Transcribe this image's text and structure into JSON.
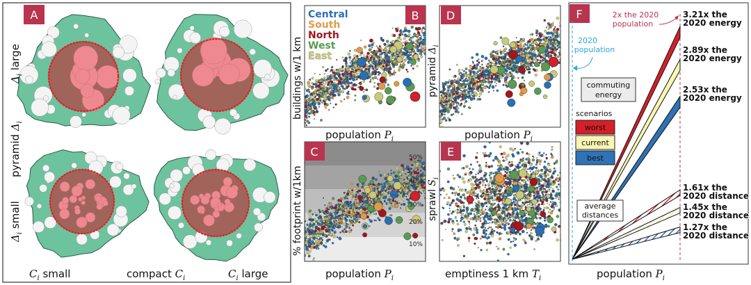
{
  "panel_letters": {
    "a": "A",
    "b": "B",
    "c": "C",
    "d": "D",
    "e": "E",
    "f": "F"
  },
  "colors": {
    "letter_bg": "#b8344f",
    "city_green": "#6cc39e",
    "core_red": "#ee8a8f",
    "core_dot": "#d9262b",
    "central": "#2a6fb3",
    "south": "#e39a48",
    "north": "#a3161e",
    "west": "#5a9a55",
    "east": "#c9c97a",
    "worst": "#d42028",
    "current": "#fbf6b4",
    "best": "#2f72b5"
  },
  "panel_a": {
    "row_top_delta": "Δ",
    "row_top_sub": "i",
    "row_top_word": "large",
    "row_mid_word": "pyramid",
    "row_mid_delta": "Δ",
    "row_mid_sub": "i",
    "row_bot_delta": "Δ",
    "row_bot_sub": "i",
    "row_bot_word": "small",
    "col_left_c": "C",
    "col_left_sub": "i",
    "col_left_word": "small",
    "col_mid_word": "compact",
    "col_mid_c": "C",
    "col_mid_sub": "i",
    "col_right_c": "C",
    "col_right_sub": "i",
    "col_right_word": "large"
  },
  "panel_b": {
    "ylabel": "buildings w/1 km",
    "xlabel_word": "population",
    "xlabel_var": "P",
    "xlabel_sub": "i",
    "legend": [
      "Central",
      "South",
      "North",
      "West",
      "East"
    ]
  },
  "panel_c": {
    "ylabel": "% footprint w/1km",
    "xlabel_word": "population",
    "xlabel_var": "P",
    "xlabel_sub": "i",
    "band_labels": [
      "50%",
      "40%",
      "30%",
      "20%",
      "10%"
    ]
  },
  "panel_d": {
    "ylabel_word": "pyramid",
    "ylabel_var": "Δ",
    "ylabel_sub": "i",
    "xlabel_word": "population",
    "xlabel_var": "P",
    "xlabel_sub": "i"
  },
  "panel_e": {
    "ylabel_word": "sprawl",
    "ylabel_var": "S",
    "ylabel_sub": "i",
    "xlabel_word": "emptiness 1 km",
    "xlabel_var": "T",
    "xlabel_sub": "i"
  },
  "panel_f": {
    "ann_2x_line1": "2x the 2020",
    "ann_2x_line2": "population",
    "ann_2020_line1": "2020",
    "ann_2020_line2": "population",
    "box_energy_line1": "commuting",
    "box_energy_line2": "energy",
    "scenarios_title": "scenarios",
    "scenario_worst": "worst",
    "scenario_current": "current",
    "scenario_best": "best",
    "box_dist_line1": "average",
    "box_dist_line2": "distances",
    "energy_worst_l1": "3.21x the",
    "energy_worst_l2": "2020 energy",
    "energy_current_l1": "2.89x the",
    "energy_current_l2": "2020 energy",
    "energy_best_l1": "2.53x the",
    "energy_best_l2": "2020 energy",
    "dist_worst_l1": "1.61x the",
    "dist_worst_l2": "2020 distance",
    "dist_current_l1": "1.45x the",
    "dist_current_l2": "2020 distance",
    "dist_best_l1": "1.27x the",
    "dist_best_l2": "2020 distance",
    "xlabel_word": "population",
    "xlabel_var": "P",
    "xlabel_sub": "i"
  },
  "chart_data": {
    "type": "line",
    "series": [
      {
        "name": "worst",
        "values": [
          1,
          3.21
        ]
      },
      {
        "name": "current",
        "values": [
          1,
          2.89
        ]
      },
      {
        "name": "best",
        "values": [
          1,
          2.53
        ]
      },
      {
        "name": "worst",
        "values": [
          1,
          1.61
        ]
      },
      {
        "name": "current",
        "values": [
          1,
          1.45
        ]
      },
      {
        "name": "best",
        "values": [
          1,
          1.27
        ]
      }
    ],
    "x": [
      "2020 population",
      "2x the 2020 population"
    ],
    "xlabel": "population P_i",
    "grid": false
  }
}
